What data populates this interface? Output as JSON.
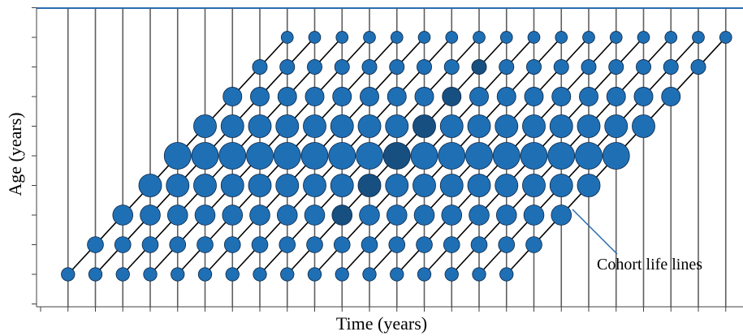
{
  "xlabel": "Time (years)",
  "ylabel": "Age (years)",
  "annotation": "Cohort life lines",
  "colors": {
    "bubble_fill": "#1f6fb5",
    "bubble_dark_fill": "#174f80",
    "bubble_stroke": "#0b2746",
    "lifeline": "#000000",
    "time_grid": "#5f5f5f",
    "top_border": "#2a6cb0",
    "axis": "#404040",
    "annotation_leader": "#2a6cb0"
  },
  "layout_rules": {
    "time_steps": 26,
    "age_levels": 9,
    "cohorts": 17,
    "annotated_cohort": 17,
    "highlighted_cohort": 9
  },
  "chart_data": {
    "type": "scatter",
    "description_of_encoding": "bubble size indicates relative magnitude at each age level",
    "age_level_relative_size": [
      0.5,
      0.6,
      0.75,
      0.85,
      1.0,
      0.85,
      0.7,
      0.55,
      0.45
    ]
  }
}
